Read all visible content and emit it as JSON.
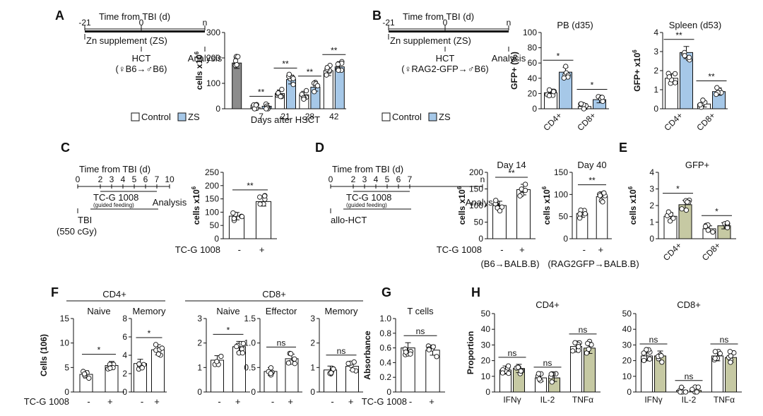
{
  "colors": {
    "control": "#ffffff",
    "zs": "#a6c8e8",
    "tcg": "#c6c9a3",
    "hct_bar": "#8c8c8c",
    "stroke": "#111111"
  },
  "chart_data": [
    {
      "panel": "A",
      "type": "bar",
      "title": "",
      "xlabel": "Days after HSCT",
      "ylabel": "cells x10^6",
      "ylim": [
        0,
        300
      ],
      "yticks": [
        "0",
        "100",
        "200",
        "300"
      ],
      "categories": [
        "",
        "7",
        "21",
        "28",
        "42"
      ],
      "series": [
        {
          "name": "HCT",
          "values": [
            180,
            null,
            null,
            null,
            null
          ]
        },
        {
          "name": "Control",
          "values": [
            null,
            5,
            60,
            55,
            150
          ]
        },
        {
          "name": "ZS",
          "values": [
            null,
            10,
            115,
            85,
            165
          ]
        }
      ],
      "annotations": [
        "**",
        "**",
        "**",
        "**"
      ],
      "legend": [
        "Control",
        "ZS"
      ]
    },
    {
      "panel": "B-PB",
      "type": "bar",
      "title": "PB (d35)",
      "ylabel": "GFP+ (%)",
      "ylim": [
        0,
        100
      ],
      "yticks": [
        "0",
        "20",
        "40",
        "60",
        "80",
        "100"
      ],
      "categories": [
        "CD4+",
        "CD8+"
      ],
      "series": [
        {
          "name": "Control",
          "values": [
            21,
            3
          ]
        },
        {
          "name": "ZS",
          "values": [
            48,
            12
          ]
        }
      ],
      "annotations": [
        "*",
        "*"
      ],
      "legend": [
        "Control",
        "ZS"
      ]
    },
    {
      "panel": "B-Spleen",
      "type": "bar",
      "title": "Spleen (d53)",
      "ylabel": "GFP+ x10^6",
      "ylim": [
        0,
        4
      ],
      "yticks": [
        "0",
        "1",
        "2",
        "3",
        "4"
      ],
      "categories": [
        "CD4+",
        "CD8+"
      ],
      "series": [
        {
          "name": "Control",
          "values": [
            1.6,
            0.25
          ]
        },
        {
          "name": "ZS",
          "values": [
            2.95,
            0.9
          ]
        }
      ],
      "annotations": [
        "**",
        "**"
      ]
    },
    {
      "panel": "C",
      "type": "bar",
      "title": "",
      "ylabel": "cells x10^6",
      "ylim": [
        0,
        250
      ],
      "yticks": [
        "0",
        "50",
        "100",
        "150",
        "200",
        "250"
      ],
      "categories": [
        "-",
        "+"
      ],
      "xaxis_prefix": "TC-G 1008",
      "series": [
        {
          "name": "TC-G 1008",
          "values": [
            85,
            140
          ]
        }
      ],
      "annotations": [
        "**"
      ]
    },
    {
      "panel": "D-Day14",
      "type": "bar",
      "title": "Day 14",
      "ylabel": "cells x10^6",
      "ylim": [
        0,
        200
      ],
      "yticks": [
        "0",
        "50",
        "100",
        "150",
        "200"
      ],
      "categories": [
        "-",
        "+"
      ],
      "xaxis_prefix": "TC-G 1008",
      "caption": "(B6→BALB.B)",
      "series": [
        {
          "name": "TC-G 1008",
          "values": [
            100,
            148
          ]
        }
      ],
      "annotations": [
        "**"
      ]
    },
    {
      "panel": "D-Day40",
      "type": "bar",
      "title": "Day 40",
      "ylabel": "cells x10^6",
      "ylim": [
        0,
        150
      ],
      "yticks": [
        "0",
        "50",
        "100",
        "150"
      ],
      "categories": [
        "-",
        "+"
      ],
      "caption": "(RAG2GFP→BALB.B)",
      "series": [
        {
          "name": "TC-G 1008",
          "values": [
            57,
            95
          ]
        }
      ],
      "annotations": [
        "**"
      ]
    },
    {
      "panel": "E",
      "type": "bar",
      "title": "GFP+",
      "ylabel": "cells x10^6",
      "ylim": [
        0,
        4
      ],
      "yticks": [
        "0",
        "1",
        "2",
        "3",
        "4"
      ],
      "categories": [
        "CD4+",
        "CD8+"
      ],
      "series": [
        {
          "name": "-",
          "values": [
            1.35,
            0.6
          ]
        },
        {
          "name": "+",
          "values": [
            2.05,
            0.78
          ]
        }
      ],
      "annotations": [
        "*",
        "*"
      ]
    },
    {
      "panel": "F-CD4-Naive",
      "type": "bar",
      "title": "Naive",
      "group": "CD4+",
      "ylabel": "Cells (106)",
      "ylim": [
        0,
        15
      ],
      "yticks": [
        "0",
        "5",
        "10",
        "15"
      ],
      "categories": [
        "-",
        "+"
      ],
      "xaxis_prefix": "TC-G 1008",
      "series": [
        {
          "name": "TC-G 1008",
          "values": [
            3.6,
            5.4
          ]
        }
      ],
      "annotations": [
        "*"
      ]
    },
    {
      "panel": "F-CD4-Memory",
      "type": "bar",
      "title": "Memory",
      "group": "CD4+",
      "ylim": [
        0,
        8
      ],
      "yticks": [
        "0",
        "2",
        "4",
        "6",
        "8"
      ],
      "categories": [
        "-",
        "+"
      ],
      "series": [
        {
          "name": "TC-G 1008",
          "values": [
            3.1,
            4.6
          ]
        }
      ],
      "annotations": [
        "*"
      ]
    },
    {
      "panel": "F-CD8-Naive",
      "type": "bar",
      "title": "Naive",
      "group": "CD8+",
      "ylim": [
        0,
        3
      ],
      "yticks": [
        "0",
        "1",
        "2",
        "3"
      ],
      "categories": [
        "-",
        "+"
      ],
      "series": [
        {
          "name": "TC-G 1008",
          "values": [
            1.3,
            1.85
          ]
        }
      ],
      "annotations": [
        "*"
      ]
    },
    {
      "panel": "F-CD8-Effector",
      "type": "bar",
      "title": "Effector",
      "group": "CD8+",
      "ylim": [
        0,
        1.5
      ],
      "yticks": [
        "0",
        "0.5",
        "1.0",
        "1.5"
      ],
      "categories": [
        "-",
        "+"
      ],
      "series": [
        {
          "name": "TC-G 1008",
          "values": [
            0.42,
            0.68
          ]
        }
      ],
      "annotations": [
        "ns"
      ]
    },
    {
      "panel": "F-CD8-Memory",
      "type": "bar",
      "title": "Memory",
      "group": "CD8+",
      "ylim": [
        0,
        3
      ],
      "yticks": [
        "0",
        "1",
        "2",
        "3"
      ],
      "categories": [
        "-",
        "+"
      ],
      "series": [
        {
          "name": "TC-G 1008",
          "values": [
            0.9,
            1.05
          ]
        }
      ],
      "annotations": [
        "ns"
      ]
    },
    {
      "panel": "G",
      "type": "bar",
      "title": "T cells",
      "ylabel": "Absorbance",
      "ylim": [
        0,
        1.0
      ],
      "yticks": [
        "0",
        "0.2",
        "0.4",
        "0.6",
        "0.8",
        "1.0"
      ],
      "categories": [
        "-",
        "+"
      ],
      "xaxis_prefix": "TC-G 1008",
      "series": [
        {
          "name": "TC-G 1008",
          "values": [
            0.6,
            0.57
          ]
        }
      ],
      "annotations": [
        "ns"
      ]
    },
    {
      "panel": "H-CD4",
      "type": "bar",
      "title": "CD4+",
      "ylabel": "Proportion",
      "ylim": [
        0,
        50
      ],
      "yticks": [
        "0",
        "10",
        "20",
        "30",
        "40",
        "50"
      ],
      "categories": [
        "IFNγ",
        "IL-2",
        "TNFα"
      ],
      "series": [
        {
          "name": "-",
          "values": [
            14,
            9,
            29
          ]
        },
        {
          "name": "+",
          "values": [
            15,
            9,
            28
          ]
        }
      ],
      "annotations": [
        "ns",
        "ns",
        "ns"
      ]
    },
    {
      "panel": "H-CD8",
      "type": "bar",
      "title": "CD8+",
      "ylim": [
        0,
        50
      ],
      "yticks": [
        "0",
        "10",
        "20",
        "30",
        "40",
        "50"
      ],
      "categories": [
        "IFNγ",
        "IL-2",
        "TNFα"
      ],
      "series": [
        {
          "name": "-",
          "values": [
            23,
            1,
            23
          ]
        },
        {
          "name": "+",
          "values": [
            23,
            1,
            22
          ]
        }
      ],
      "annotations": [
        "ns",
        "ns",
        "ns"
      ]
    }
  ],
  "panel_letters": [
    "A",
    "B",
    "C",
    "D",
    "E",
    "F",
    "G",
    "H"
  ],
  "timelines": {
    "A": {
      "title": "Time from TBI (d)",
      "ticks": [
        "-21",
        "0",
        "n"
      ],
      "bar_label": "Zn supplement (ZS)",
      "hct": "HCT",
      "analysis": "Analysis",
      "transplant": "(♀B6→♂B6)"
    },
    "B": {
      "title": "Time from TBI (d)",
      "ticks": [
        "-21",
        "0",
        "n"
      ],
      "bar_label": "Zn supplement (ZS)",
      "hct": "HCT",
      "analysis": "Analysis",
      "transplant": "(♀RAG2-GFP→♂B6)"
    },
    "C": {
      "title": "Time from TBI (d)",
      "ticks": [
        "0",
        "2",
        "3",
        "4",
        "5",
        "6",
        "7",
        "10"
      ],
      "drug": "TC-G 1008",
      "drug_note": "(guided feeding)",
      "analysis": "Analysis",
      "tbi": "TBI",
      "dose": "(550 cGy)"
    },
    "D": {
      "title": "Time from TBI (d)",
      "ticks": [
        "0",
        "2",
        "3",
        "4",
        "5",
        "6",
        "7",
        "n"
      ],
      "drug": "TC-G 1008",
      "drug_note": "(guided feeding)",
      "analysis": "Analysis",
      "hct": "allo-HCT"
    }
  },
  "legend": {
    "control": "Control",
    "zs": "ZS"
  },
  "group_labels": {
    "f_cd4": "CD4+",
    "f_cd8": "CD8+"
  },
  "treatment_label": "TC-G 1008"
}
